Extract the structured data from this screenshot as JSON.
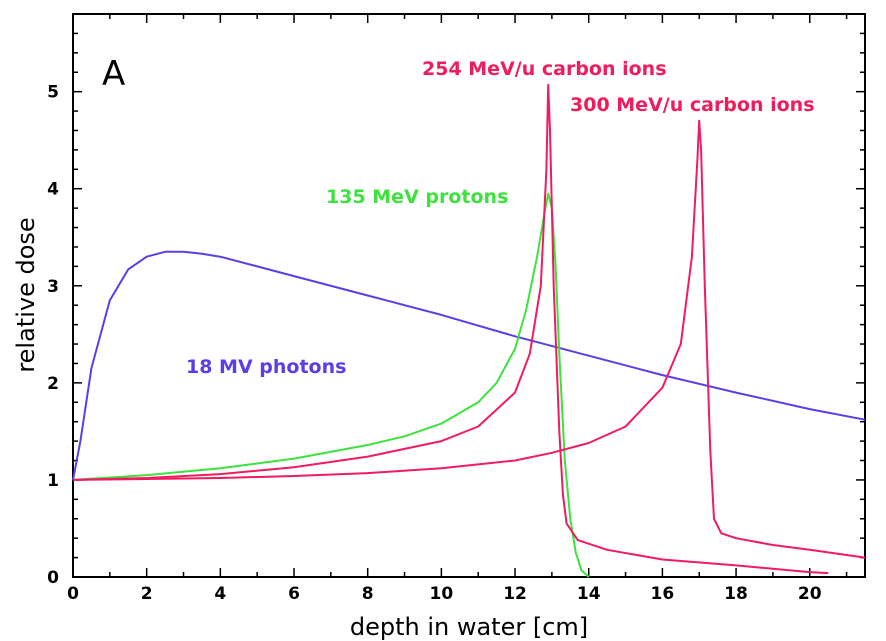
{
  "chart_data": {
    "type": "line",
    "panel_label": "A",
    "xlabel": "depth in water [cm]",
    "ylabel": "relative dose",
    "xlim": [
      0,
      21.5
    ],
    "ylim": [
      0,
      5.8
    ],
    "xticks": [
      0,
      2,
      4,
      6,
      8,
      10,
      12,
      14,
      16,
      18,
      20
    ],
    "yticks": [
      0,
      1,
      2,
      3,
      4,
      5
    ],
    "series": [
      {
        "name": "18 MV photons",
        "color": "#5a3fe6",
        "x": [
          0,
          0.2,
          0.5,
          1.0,
          1.5,
          2.0,
          2.5,
          3.0,
          3.5,
          4.0,
          5.0,
          6.0,
          8.0,
          10.0,
          12.0,
          14.0,
          16.0,
          18.0,
          20.0,
          21.5
        ],
        "y": [
          1.0,
          1.4,
          2.15,
          2.85,
          3.17,
          3.3,
          3.35,
          3.35,
          3.33,
          3.3,
          3.2,
          3.1,
          2.9,
          2.7,
          2.48,
          2.28,
          2.08,
          1.9,
          1.73,
          1.62
        ]
      },
      {
        "name": "135 MeV protons",
        "color": "#3ee23e",
        "x": [
          0,
          2,
          4,
          6,
          8,
          9,
          10,
          11,
          11.5,
          12,
          12.3,
          12.6,
          12.8,
          12.9,
          13.0,
          13.1,
          13.2,
          13.35,
          13.5,
          13.65,
          13.8,
          14.0
        ],
        "y": [
          1.0,
          1.05,
          1.12,
          1.22,
          1.36,
          1.45,
          1.58,
          1.8,
          2.0,
          2.35,
          2.75,
          3.3,
          3.75,
          3.95,
          3.8,
          3.2,
          2.3,
          1.2,
          0.6,
          0.25,
          0.07,
          0.0
        ]
      },
      {
        "name": "254 MeV/u carbon ions",
        "color": "#ef1c5e",
        "x": [
          0,
          2,
          4,
          6,
          8,
          10,
          11,
          12,
          12.4,
          12.7,
          12.85,
          12.9,
          12.95,
          13.05,
          13.2,
          13.3,
          13.4,
          13.7,
          14.5,
          16,
          18,
          20,
          20.5
        ],
        "y": [
          1.0,
          1.02,
          1.06,
          1.13,
          1.24,
          1.4,
          1.55,
          1.9,
          2.3,
          3.0,
          4.2,
          5.07,
          4.6,
          3.0,
          1.5,
          0.85,
          0.55,
          0.38,
          0.28,
          0.18,
          0.12,
          0.05,
          0.04
        ]
      },
      {
        "name": "300 MeV/u carbon ions",
        "color": "#ef1c5e",
        "x": [
          0,
          2,
          4,
          6,
          8,
          10,
          12,
          13,
          14,
          15,
          16,
          16.5,
          16.8,
          16.95,
          17.0,
          17.05,
          17.15,
          17.3,
          17.4,
          17.6,
          18,
          19,
          20,
          21.5
        ],
        "y": [
          1.0,
          1.01,
          1.02,
          1.04,
          1.07,
          1.12,
          1.2,
          1.28,
          1.38,
          1.55,
          1.95,
          2.4,
          3.3,
          4.3,
          4.7,
          4.4,
          3.0,
          1.3,
          0.6,
          0.45,
          0.4,
          0.33,
          0.28,
          0.2
        ]
      }
    ],
    "annotations": [
      {
        "text": "254 MeV/u carbon ions",
        "series": 2,
        "color": "#ef1c5e"
      },
      {
        "text": "300 MeV/u carbon ions",
        "series": 3,
        "color": "#ef1c5e"
      },
      {
        "text": "135 MeV protons",
        "series": 1,
        "color": "#3ee23e"
      },
      {
        "text": "18 MV photons",
        "series": 0,
        "color": "#5a3fe6"
      }
    ]
  }
}
